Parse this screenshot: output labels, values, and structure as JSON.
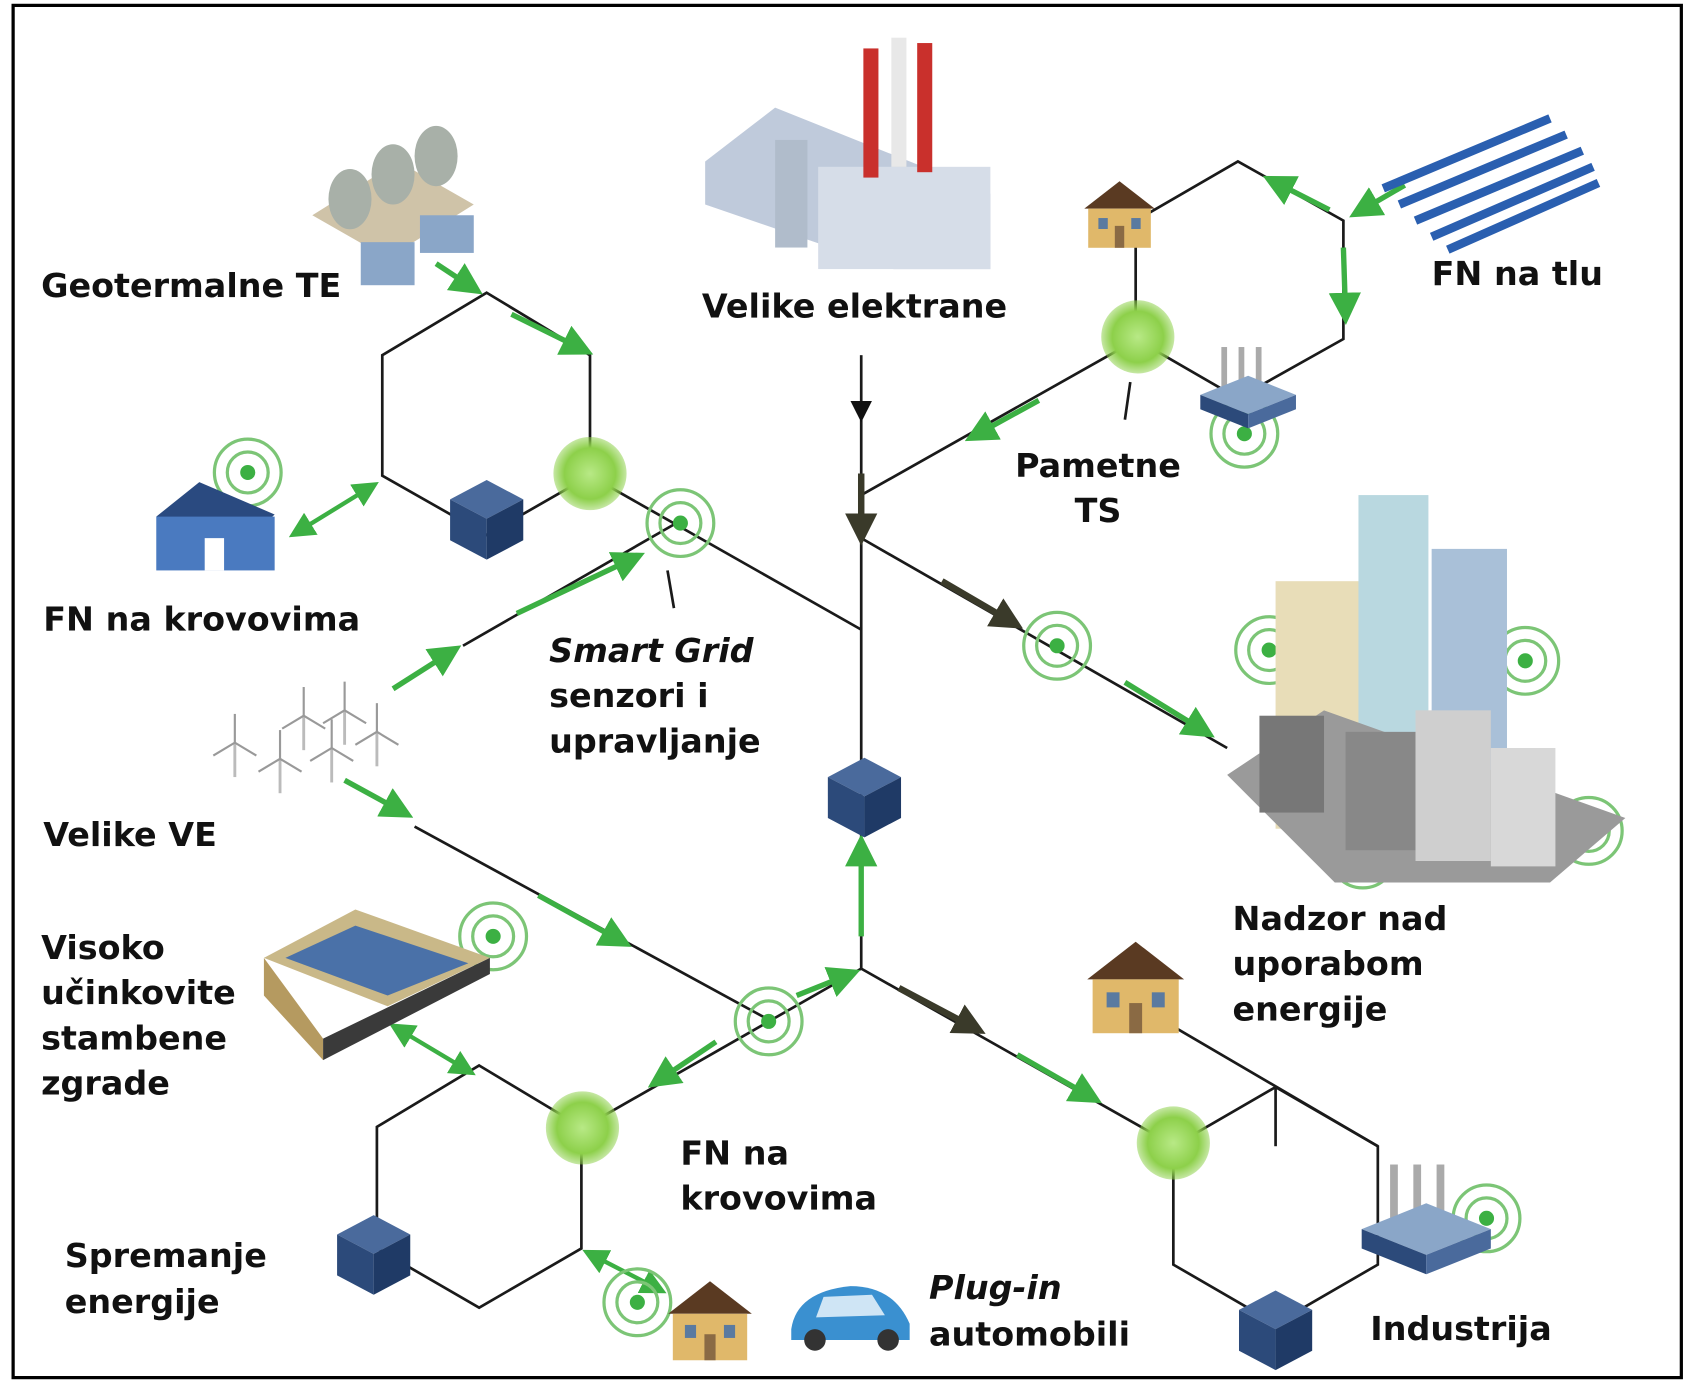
{
  "labels": [
    {
      "lines": [
        "Geotermalne TE"
      ]
    },
    {
      "lines": [
        "Velike elektrane"
      ]
    },
    {
      "lines": [
        "FN na tlu"
      ]
    },
    {
      "lines": [
        "Pametne",
        "TS"
      ]
    },
    {
      "lines": [
        "FN na krovovima"
      ]
    },
    {
      "lines": [
        "Smart Grid",
        "senzori i",
        "upravljanje"
      ]
    },
    {
      "lines": [
        "Velike VE"
      ]
    },
    {
      "lines": [
        "Visoko",
        "učinkovite",
        "stambene",
        "zgrade"
      ]
    },
    {
      "lines": [
        "Nadzor nad",
        "uporabom",
        "energije"
      ]
    },
    {
      "lines": [
        "FN na",
        "krovovima"
      ]
    },
    {
      "lines": [
        "Spremanje",
        "energije"
      ]
    },
    {
      "lines": [
        "Plug-in",
        "automobili"
      ]
    },
    {
      "lines": [
        "Industrija"
      ]
    }
  ]
}
